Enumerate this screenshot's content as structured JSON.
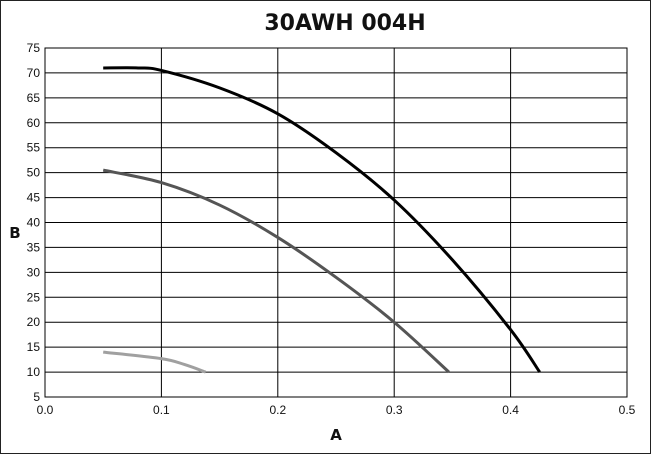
{
  "chart_data": {
    "type": "line",
    "title": "30AWH 004H",
    "xlabel": "A",
    "ylabel": "B",
    "xlim": [
      0.0,
      0.5
    ],
    "ylim": [
      5,
      75
    ],
    "grid": true,
    "x_ticks": [
      "0.0",
      "0.1",
      "0.2",
      "0.3",
      "0.4",
      "0.5"
    ],
    "y_ticks": [
      "5",
      "10",
      "15",
      "20",
      "25",
      "30",
      "35",
      "40",
      "45",
      "50",
      "55",
      "60",
      "65",
      "70",
      "75"
    ],
    "series": [
      {
        "color": "#000000",
        "x": [
          0.05,
          0.08,
          0.1,
          0.15,
          0.2,
          0.25,
          0.3,
          0.35,
          0.4,
          0.425
        ],
        "y": [
          71.0,
          71.0,
          70.5,
          67.0,
          61.8,
          54.0,
          44.5,
          32.5,
          18.5,
          10.0
        ]
      },
      {
        "color": "#555555",
        "x": [
          0.05,
          0.1,
          0.15,
          0.2,
          0.25,
          0.3,
          0.347
        ],
        "y": [
          50.5,
          48.0,
          43.5,
          37.0,
          29.0,
          20.0,
          10.0
        ]
      },
      {
        "color": "#a0a0a0",
        "x": [
          0.05,
          0.1,
          0.12,
          0.138
        ],
        "y": [
          14.0,
          12.7,
          11.5,
          10.0
        ]
      }
    ]
  }
}
